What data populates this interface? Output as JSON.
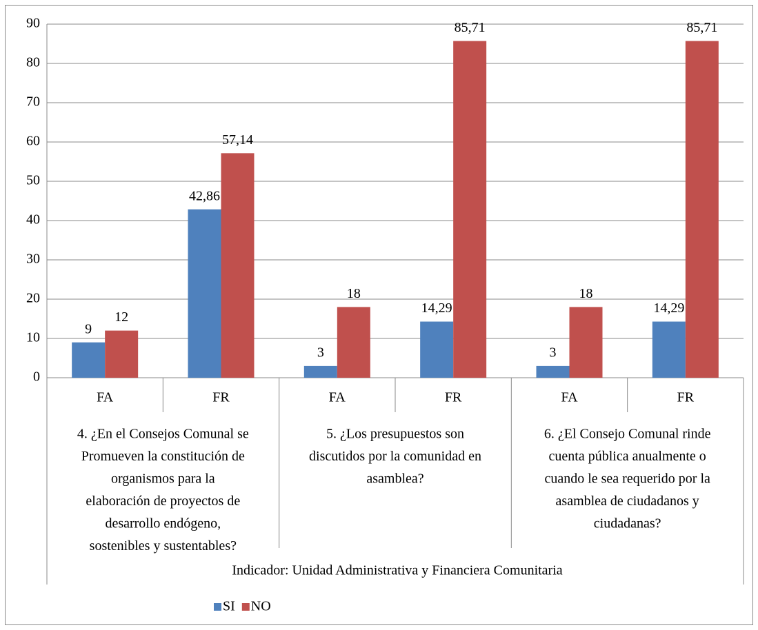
{
  "chart_data": {
    "type": "bar",
    "categories": [
      "FA",
      "FR",
      "FA",
      "FR",
      "FA",
      "FR"
    ],
    "groups": [
      [
        "4. ¿En el Consejos Comunal se",
        "Promueven la constitución de",
        "organismos  para la",
        "elaboración de proyectos de",
        "desarrollo endógeno,",
        "sostenibles y sustentables?"
      ],
      [
        "5. ¿Los presupuestos son",
        "discutidos por la comunidad en",
        "asamblea?"
      ],
      [
        "6. ¿El Consejo Comunal rinde",
        "cuenta pública anualmente o",
        "cuando le sea requerido por la",
        "asamblea de ciudadanos y",
        "ciudadanas?"
      ]
    ],
    "group_title": "Indicador: Unidad Administrativa y Financiera Comunitaria",
    "series": [
      {
        "name": "SI",
        "color": "#4f81bd",
        "values": [
          9,
          42.86,
          3,
          14.29,
          3,
          14.29
        ],
        "value_labels": [
          "9",
          "42,86",
          "3",
          "14,29",
          "3",
          "14,29"
        ]
      },
      {
        "name": "NO",
        "color": "#c0504d",
        "values": [
          12,
          57.14,
          18,
          85.71,
          18,
          85.71
        ],
        "value_labels": [
          "12",
          "57,14",
          "18",
          "85,71",
          "18",
          "85,71"
        ]
      }
    ],
    "ylim": [
      0,
      90
    ],
    "yticks": [
      0,
      10,
      20,
      30,
      40,
      50,
      60,
      70,
      80,
      90
    ],
    "grid": true,
    "legend": "bottom"
  }
}
